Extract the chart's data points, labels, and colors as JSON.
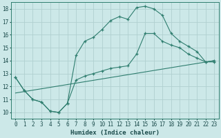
{
  "xlabel": "Humidex (Indice chaleur)",
  "bg_color": "#cce8e8",
  "grid_color": "#b0d0d0",
  "line_color": "#2e7d6e",
  "xlim": [
    -0.5,
    23.5
  ],
  "ylim": [
    9.5,
    18.5
  ],
  "xticks": [
    0,
    1,
    2,
    3,
    4,
    5,
    6,
    7,
    8,
    9,
    10,
    11,
    12,
    13,
    14,
    15,
    16,
    17,
    18,
    19,
    20,
    21,
    22,
    23
  ],
  "yticks": [
    10,
    11,
    12,
    13,
    14,
    15,
    16,
    17,
    18
  ],
  "curve1_x": [
    0,
    1,
    2,
    3,
    4,
    5,
    6,
    7,
    8,
    9,
    10,
    11,
    12,
    13,
    14,
    15,
    16,
    17,
    18,
    19,
    20,
    21,
    22,
    23
  ],
  "curve1_y": [
    12.7,
    11.7,
    11.0,
    10.8,
    10.1,
    10.0,
    10.7,
    14.4,
    15.5,
    15.8,
    16.4,
    17.1,
    17.4,
    17.2,
    18.1,
    18.2,
    18.0,
    17.5,
    16.1,
    15.5,
    15.1,
    14.7,
    13.9,
    13.9
  ],
  "curve2_x": [
    0,
    1,
    2,
    3,
    4,
    5,
    6,
    7,
    8,
    9,
    10,
    11,
    12,
    13,
    14,
    15,
    16,
    17,
    18,
    19,
    20,
    21,
    22,
    23
  ],
  "curve2_y": [
    12.7,
    11.7,
    11.0,
    10.8,
    10.1,
    10.0,
    10.7,
    12.5,
    12.8,
    13.0,
    13.2,
    13.4,
    13.5,
    13.6,
    14.5,
    16.1,
    16.1,
    15.5,
    15.2,
    15.0,
    14.5,
    14.2,
    13.9,
    14.0
  ],
  "curve3_x": [
    0,
    23
  ],
  "curve3_y": [
    11.5,
    14.0
  ]
}
